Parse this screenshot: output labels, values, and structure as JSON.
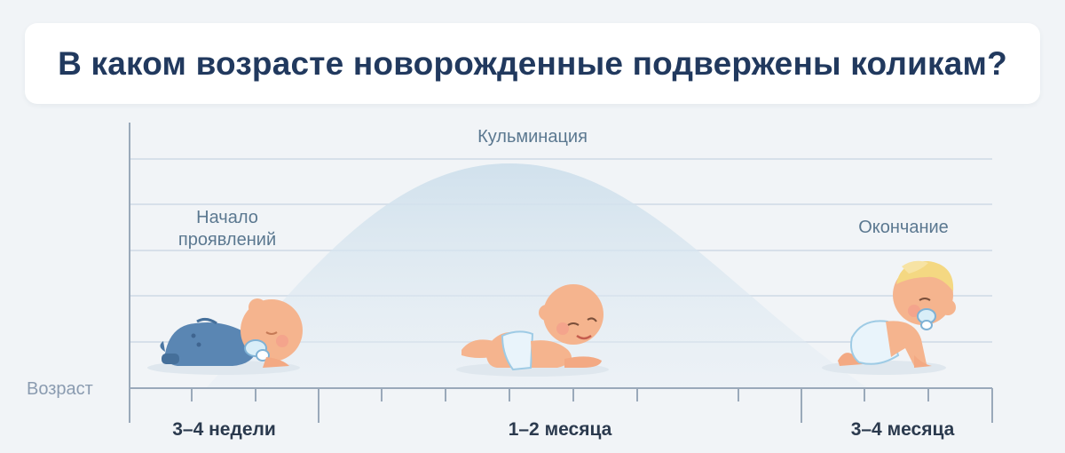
{
  "title": "В каком возрасте новорожденные подвержены коликам?",
  "annotations": {
    "start": [
      "Начало",
      "проявлений"
    ],
    "peak": "Кульминация",
    "end": "Окончание"
  },
  "axis": {
    "y_label": "Возраст",
    "stages": [
      "3–4 недели",
      "1–2 месяца",
      "3–4 месяца"
    ]
  },
  "colors": {
    "title": "#21395e",
    "annotation": "#5b7890",
    "curve": "#c8dcea",
    "grid": "#d7e0ea",
    "axis": "#9aa9ba"
  },
  "illustrations": [
    "baby-lying-icon",
    "baby-on-tummy-icon",
    "baby-crawling-icon"
  ]
}
